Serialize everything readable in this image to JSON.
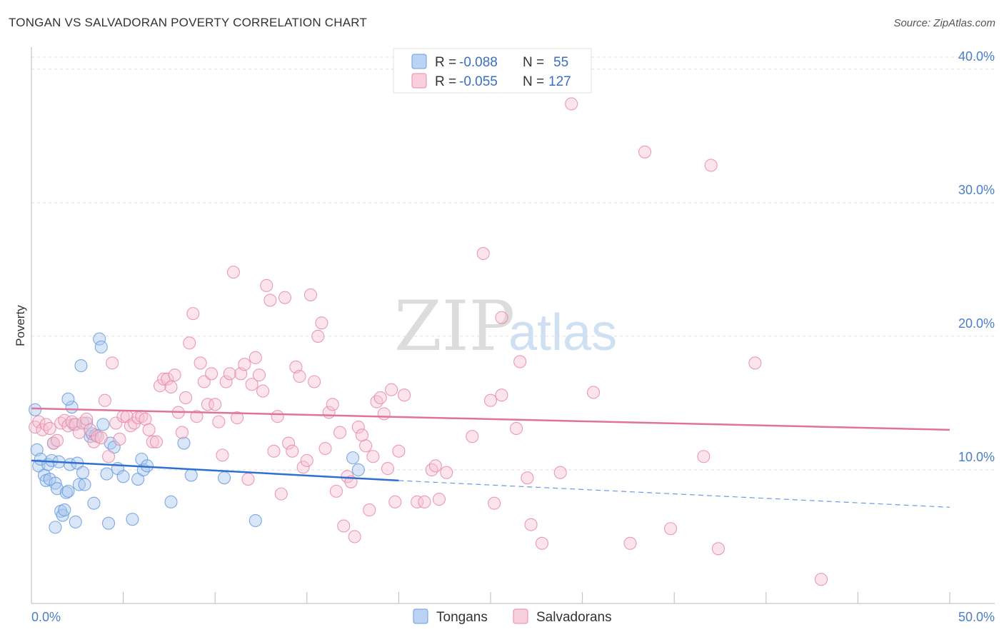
{
  "title": "TONGAN VS SALVADORAN POVERTY CORRELATION CHART",
  "source": "Source: ZipAtlas.com",
  "watermark": {
    "zip": "ZIP",
    "atlas": "atlas"
  },
  "chart_data": {
    "type": "scatter",
    "xlabel": "",
    "ylabel": "Poverty",
    "xlim": [
      0,
      50
    ],
    "ylim": [
      0,
      40
    ],
    "x_tick_labels": {
      "min": "0.0%",
      "max": "50.0%"
    },
    "y_ticks": [
      {
        "value": 10,
        "label": "10.0%"
      },
      {
        "value": 20,
        "label": "20.0%"
      },
      {
        "value": 30,
        "label": "30.0%"
      },
      {
        "value": 40,
        "label": "40.0%"
      }
    ],
    "grid": true,
    "legend_placement": "top-center",
    "series": [
      {
        "name": "Tongans",
        "color": "#6a9be0",
        "fill": "#a8c8f0",
        "R": "-0.088",
        "N": "55",
        "trend": {
          "x0": 0,
          "y0": 10.7,
          "x1": 20,
          "y1": 9.2,
          "dash_x1": 50,
          "dash_y1": 7.2
        },
        "points": [
          [
            0.2,
            14.5
          ],
          [
            0.3,
            11.5
          ],
          [
            0.4,
            10.3
          ],
          [
            0.5,
            10.8
          ],
          [
            0.7,
            9.6
          ],
          [
            0.8,
            9.2
          ],
          [
            0.9,
            10.4
          ],
          [
            1.0,
            9.3
          ],
          [
            1.1,
            10.7
          ],
          [
            1.2,
            12.0
          ],
          [
            1.3,
            9.0
          ],
          [
            1.4,
            8.6
          ],
          [
            1.5,
            10.6
          ],
          [
            1.6,
            6.9
          ],
          [
            1.7,
            6.6
          ],
          [
            1.8,
            7.0
          ],
          [
            1.9,
            8.3
          ],
          [
            2.0,
            8.4
          ],
          [
            2.1,
            10.4
          ],
          [
            2.2,
            14.7
          ],
          [
            2.3,
            13.4
          ],
          [
            2.4,
            6.1
          ],
          [
            2.5,
            10.5
          ],
          [
            2.6,
            8.9
          ],
          [
            2.7,
            17.8
          ],
          [
            2.8,
            9.8
          ],
          [
            2.9,
            8.9
          ],
          [
            3.0,
            13.5
          ],
          [
            3.2,
            12.5
          ],
          [
            3.3,
            12.7
          ],
          [
            3.4,
            7.5
          ],
          [
            3.5,
            12.6
          ],
          [
            3.7,
            19.8
          ],
          [
            3.8,
            19.2
          ],
          [
            3.9,
            13.4
          ],
          [
            4.1,
            9.7
          ],
          [
            4.2,
            6.0
          ],
          [
            4.3,
            12.0
          ],
          [
            4.5,
            11.7
          ],
          [
            4.7,
            10.1
          ],
          [
            5.0,
            9.5
          ],
          [
            5.5,
            6.3
          ],
          [
            5.8,
            9.3
          ],
          [
            6.0,
            10.8
          ],
          [
            6.1,
            10.0
          ],
          [
            6.3,
            10.3
          ],
          [
            7.6,
            7.6
          ],
          [
            8.3,
            12.0
          ],
          [
            8.7,
            9.6
          ],
          [
            10.5,
            9.4
          ],
          [
            12.2,
            6.2
          ],
          [
            17.5,
            10.9
          ],
          [
            17.8,
            10.0
          ],
          [
            1.3,
            5.7
          ],
          [
            2.0,
            15.3
          ]
        ]
      },
      {
        "name": "Salvadorans",
        "color": "#e88aa8",
        "fill": "#f6c3d3",
        "R": "-0.055",
        "N": "127",
        "trend": {
          "x0": 0,
          "y0": 14.6,
          "x1": 50,
          "y1": 13.0
        },
        "points": [
          [
            0.2,
            13.2
          ],
          [
            0.4,
            13.6
          ],
          [
            0.6,
            13.0
          ],
          [
            0.8,
            13.4
          ],
          [
            1.0,
            13.1
          ],
          [
            1.2,
            12.0
          ],
          [
            1.4,
            12.2
          ],
          [
            1.6,
            13.5
          ],
          [
            1.8,
            13.7
          ],
          [
            2.0,
            13.3
          ],
          [
            2.2,
            13.6
          ],
          [
            2.4,
            13.4
          ],
          [
            2.6,
            12.8
          ],
          [
            2.8,
            13.5
          ],
          [
            3.0,
            13.8
          ],
          [
            3.2,
            13.0
          ],
          [
            3.4,
            12.1
          ],
          [
            3.6,
            12.5
          ],
          [
            3.8,
            12.4
          ],
          [
            4.0,
            15.2
          ],
          [
            4.2,
            11.0
          ],
          [
            4.4,
            18.0
          ],
          [
            4.6,
            13.5
          ],
          [
            4.8,
            12.3
          ],
          [
            5.0,
            14.0
          ],
          [
            5.2,
            14.0
          ],
          [
            5.4,
            13.3
          ],
          [
            5.6,
            13.5
          ],
          [
            5.8,
            13.9
          ],
          [
            6.0,
            14.0
          ],
          [
            6.2,
            13.8
          ],
          [
            6.4,
            13.0
          ],
          [
            6.6,
            12.1
          ],
          [
            6.8,
            12.1
          ],
          [
            7.0,
            16.3
          ],
          [
            7.2,
            16.8
          ],
          [
            7.4,
            16.8
          ],
          [
            7.6,
            16.2
          ],
          [
            7.8,
            17.1
          ],
          [
            8.0,
            14.3
          ],
          [
            8.2,
            12.8
          ],
          [
            8.4,
            15.4
          ],
          [
            8.6,
            19.5
          ],
          [
            8.8,
            21.7
          ],
          [
            9.0,
            14.0
          ],
          [
            9.2,
            18.0
          ],
          [
            9.4,
            16.6
          ],
          [
            9.6,
            14.9
          ],
          [
            9.8,
            17.2
          ],
          [
            10.0,
            14.9
          ],
          [
            10.2,
            13.6
          ],
          [
            10.4,
            11.1
          ],
          [
            10.6,
            16.6
          ],
          [
            10.8,
            17.2
          ],
          [
            11.0,
            24.8
          ],
          [
            11.2,
            13.9
          ],
          [
            11.4,
            17.2
          ],
          [
            11.6,
            17.9
          ],
          [
            11.8,
            9.3
          ],
          [
            12.0,
            16.4
          ],
          [
            12.2,
            18.4
          ],
          [
            12.4,
            17.1
          ],
          [
            12.6,
            15.9
          ],
          [
            12.8,
            23.8
          ],
          [
            13.0,
            22.7
          ],
          [
            13.2,
            11.4
          ],
          [
            13.4,
            14.0
          ],
          [
            13.6,
            8.2
          ],
          [
            13.8,
            22.9
          ],
          [
            14.0,
            12.0
          ],
          [
            14.2,
            11.4
          ],
          [
            14.4,
            17.7
          ],
          [
            14.6,
            17.0
          ],
          [
            14.8,
            10.2
          ],
          [
            15.0,
            10.7
          ],
          [
            15.2,
            23.1
          ],
          [
            15.4,
            16.6
          ],
          [
            15.6,
            20.0
          ],
          [
            15.8,
            21.0
          ],
          [
            16.0,
            11.6
          ],
          [
            16.2,
            14.3
          ],
          [
            16.4,
            14.9
          ],
          [
            16.6,
            8.4
          ],
          [
            16.8,
            12.8
          ],
          [
            17.0,
            5.8
          ],
          [
            17.2,
            9.5
          ],
          [
            17.4,
            9.1
          ],
          [
            17.6,
            5.0
          ],
          [
            17.8,
            13.2
          ],
          [
            18.0,
            12.6
          ],
          [
            18.2,
            11.8
          ],
          [
            18.4,
            7.0
          ],
          [
            18.6,
            11.0
          ],
          [
            18.8,
            15.1
          ],
          [
            19.0,
            15.4
          ],
          [
            19.2,
            14.2
          ],
          [
            19.4,
            10.1
          ],
          [
            19.6,
            16.0
          ],
          [
            19.8,
            7.6
          ],
          [
            20.0,
            11.4
          ],
          [
            20.3,
            15.6
          ],
          [
            21.0,
            7.6
          ],
          [
            21.4,
            7.6
          ],
          [
            21.8,
            10.0
          ],
          [
            22.0,
            10.3
          ],
          [
            22.2,
            7.8
          ],
          [
            22.6,
            9.8
          ],
          [
            24.0,
            12.5
          ],
          [
            24.6,
            26.2
          ],
          [
            25.0,
            15.2
          ],
          [
            25.2,
            7.5
          ],
          [
            25.6,
            15.6
          ],
          [
            25.6,
            21.4
          ],
          [
            26.4,
            13.1
          ],
          [
            26.6,
            18.1
          ],
          [
            27.0,
            9.4
          ],
          [
            27.2,
            5.9
          ],
          [
            27.8,
            4.5
          ],
          [
            28.8,
            9.8
          ],
          [
            29.4,
            37.4
          ],
          [
            30.6,
            15.8
          ],
          [
            32.6,
            4.5
          ],
          [
            33.4,
            33.8
          ],
          [
            34.8,
            5.6
          ],
          [
            36.6,
            11.0
          ],
          [
            37.0,
            32.8
          ],
          [
            37.4,
            4.1
          ],
          [
            39.4,
            18.0
          ],
          [
            43.0,
            1.8
          ]
        ]
      }
    ]
  }
}
